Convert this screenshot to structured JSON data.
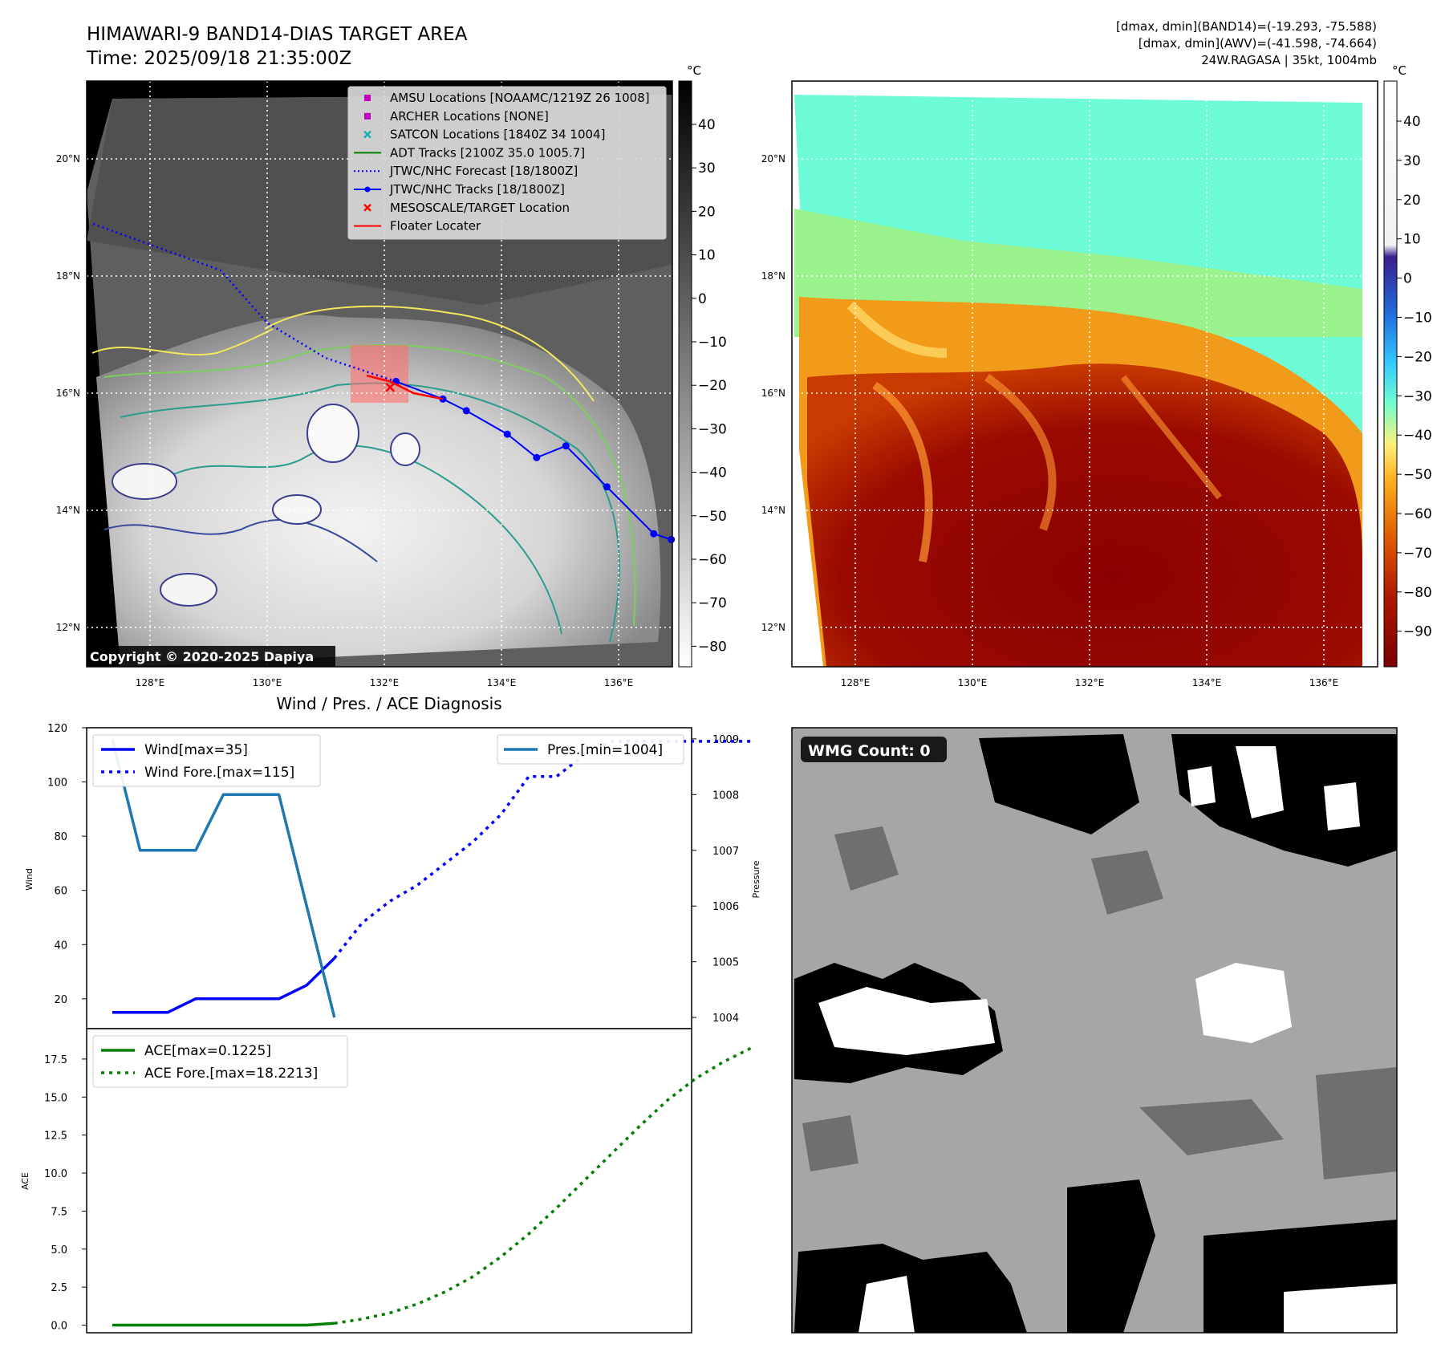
{
  "header": {
    "title": "HIMAWARI-9 BAND14-DIAS TARGET AREA",
    "time": "Time: 2025/09/18 21:35:00Z",
    "dmax_band14": "[dmax, dmin](BAND14)=(-19.293, -75.588)",
    "dmax_awv": "[dmax, dmin](AWV)=(-41.598, -74.664)",
    "storm": "24W.RAGASA | 35kt, 1004mb"
  },
  "colors": {
    "wind": "#0000ff",
    "pressure": "#1f77b4",
    "ace": "#008000",
    "jtwc_track": "#0000ff",
    "floater": "#ff0000",
    "amsu": "#c000c0",
    "satcon": "#17b0b0"
  },
  "ir_map": {
    "colorbar_unit": "°C",
    "colorbar_ticks": [
      "40",
      "30",
      "20",
      "10",
      "0",
      "−10",
      "−20",
      "−30",
      "−40",
      "−50",
      "−60",
      "−70",
      "−80"
    ],
    "lat_labels": [
      "20°N",
      "18°N",
      "16°N",
      "14°N",
      "12°N"
    ],
    "lon_labels": [
      "128°E",
      "130°E",
      "132°E",
      "134°E",
      "136°E"
    ],
    "copyright": "Copyright © 2020-2025 Dapiya",
    "legend": [
      {
        "label": "AMSU Locations [NOAAMC/1219Z 26 1008]",
        "marker": "square",
        "color": "#c000c0"
      },
      {
        "label": "ARCHER Locations [NONE]",
        "marker": "square",
        "color": "#c000c0"
      },
      {
        "label": "SATCON Locations [1840Z 34 1004]",
        "marker": "x",
        "color": "#17b0b0"
      },
      {
        "label": "ADT Tracks [2100Z 35.0 1005.7]",
        "marker": "line",
        "color": "#008000"
      },
      {
        "label": "JTWC/NHC Forecast [18/1800Z]",
        "marker": "dotted",
        "color": "#0000ff"
      },
      {
        "label": "JTWC/NHC Tracks [18/1800Z]",
        "marker": "line-dot",
        "color": "#0000ff"
      },
      {
        "label": "MESOSCALE/TARGET Location",
        "marker": "x",
        "color": "#ff0000"
      },
      {
        "label": "Floater Locater",
        "marker": "line",
        "color": "#ff0000"
      }
    ],
    "jtwc_track_points": [
      [
        136.9,
        13.5
      ],
      [
        136.6,
        13.6
      ],
      [
        135.8,
        14.4
      ],
      [
        135.1,
        15.1
      ],
      [
        134.6,
        14.9
      ],
      [
        134.1,
        15.3
      ],
      [
        133.4,
        15.7
      ],
      [
        133.0,
        15.9
      ],
      [
        132.2,
        16.2
      ]
    ],
    "jtwc_forecast_points": [
      [
        132.2,
        16.2
      ],
      [
        131.0,
        16.6
      ],
      [
        130.0,
        17.2
      ],
      [
        129.2,
        18.1
      ],
      [
        127.0,
        18.9
      ]
    ],
    "floater_points": [
      [
        131.7,
        16.3
      ],
      [
        132.1,
        16.2
      ],
      [
        132.5,
        16.0
      ],
      [
        133.0,
        15.9
      ]
    ],
    "target_location": [
      132.1,
      16.1
    ]
  },
  "awv_map": {
    "colorbar_unit": "°C",
    "colorbar_ticks": [
      "40",
      "30",
      "20",
      "10",
      "0",
      "−10",
      "−20",
      "−30",
      "−40",
      "−50",
      "−60",
      "−70",
      "−80",
      "−90"
    ],
    "lat_labels": [
      "20°N",
      "18°N",
      "16°N",
      "14°N",
      "12°N"
    ],
    "lon_labels": [
      "128°E",
      "130°E",
      "132°E",
      "134°E",
      "136°E"
    ]
  },
  "wmg_panel": {
    "badge": "WMG Count: 0"
  },
  "diag_title": "Wind / Pres. / ACE Diagnosis",
  "chart_data": [
    {
      "type": "line",
      "title": "Wind / Pres. / ACE Diagnosis",
      "ylabel": "Wind",
      "y2label": "Pressure",
      "ylim": [
        9,
        120
      ],
      "y2lim": [
        1003.8,
        1009.2
      ],
      "yticks": [
        "20",
        "40",
        "60",
        "80",
        "100",
        "120"
      ],
      "y2ticks": [
        "1004",
        "1005",
        "1006",
        "1007",
        "1008",
        "1009"
      ],
      "legend_left": [
        "Wind[max=35]",
        "Wind Fore.[max=115]"
      ],
      "legend_right": [
        "Pres.[min=1004]"
      ],
      "series": [
        {
          "name": "Wind[max=35]",
          "style": "solid",
          "axis": "left",
          "x": [
            0,
            2,
            3,
            4,
            5,
            6,
            7,
            8
          ],
          "y": [
            15,
            15,
            20,
            20,
            20,
            20,
            25,
            35
          ]
        },
        {
          "name": "Wind Fore.[max=115]",
          "style": "dotted",
          "axis": "left",
          "x": [
            8,
            9,
            10,
            11,
            12,
            13,
            14,
            15,
            16,
            17,
            18,
            19,
            20,
            21,
            22,
            23
          ],
          "y": [
            35,
            48,
            56,
            62,
            70,
            78,
            88,
            102,
            102,
            110,
            115,
            115,
            115,
            115,
            115,
            115
          ]
        },
        {
          "name": "Pres.[min=1004]",
          "style": "solid",
          "axis": "right",
          "x": [
            0,
            1,
            2,
            3,
            4,
            5,
            6,
            7,
            8
          ],
          "y": [
            1009,
            1007,
            1007,
            1007,
            1008,
            1008,
            1008,
            1006,
            1004
          ]
        }
      ]
    },
    {
      "type": "line",
      "ylabel": "ACE",
      "ylim": [
        -0.5,
        19.5
      ],
      "yticks": [
        "0.0",
        "2.5",
        "5.0",
        "7.5",
        "10.0",
        "12.5",
        "15.0",
        "17.5"
      ],
      "legend": [
        "ACE[max=0.1225]",
        "ACE Fore.[max=18.2213]"
      ],
      "series": [
        {
          "name": "ACE[max=0.1225]",
          "style": "solid",
          "x": [
            0,
            2,
            4,
            6,
            7,
            8
          ],
          "y": [
            0,
            0,
            0,
            0,
            0,
            0.1225
          ]
        },
        {
          "name": "ACE Fore.[max=18.2213]",
          "style": "dotted",
          "x": [
            8,
            9,
            10,
            11,
            12,
            13,
            14,
            15,
            16,
            17,
            18,
            19,
            20,
            21,
            22,
            23
          ],
          "y": [
            0.12,
            0.4,
            0.8,
            1.4,
            2.2,
            3.2,
            4.5,
            6.0,
            7.7,
            9.5,
            11.3,
            13.1,
            14.8,
            16.2,
            17.3,
            18.22
          ]
        }
      ]
    }
  ]
}
